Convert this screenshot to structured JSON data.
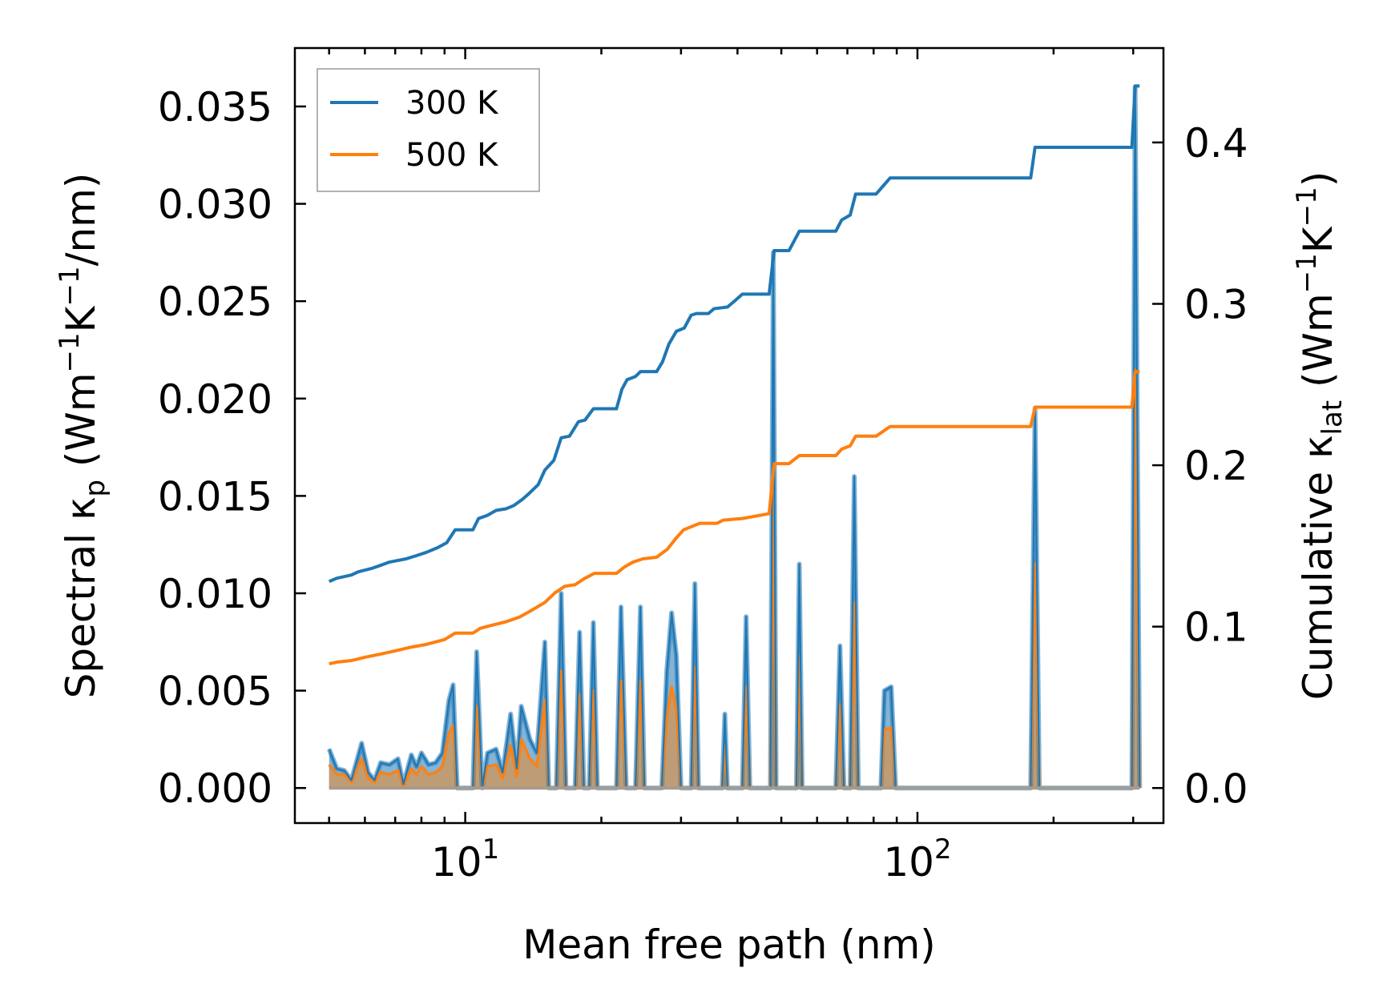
{
  "chart_data": {
    "type": "line",
    "title": "",
    "xlabel": "Mean free path (nm)",
    "x_scale": "log",
    "xlim": [
      4.2,
      350
    ],
    "x_ticks": [
      {
        "value": 10,
        "base": "10",
        "exp": "1"
      },
      {
        "value": 100,
        "base": "10",
        "exp": "2"
      }
    ],
    "ylabel_left": {
      "main": "Spectral κ",
      "sub": "p",
      "unit_open": " (Wm",
      "sup1": "−1",
      "mid": "K",
      "sup2": "−1",
      "unit_close": "/nm)"
    },
    "ylabel_right": {
      "main": "Cumulative κ",
      "sub": "lat",
      "unit_open": " (Wm",
      "sup1": "−1",
      "mid": "K",
      "sup2": "−1",
      "unit_close": ")"
    },
    "ylim_left": [
      -0.0018,
      0.038
    ],
    "ylim_right": [
      -0.0217,
      0.4585
    ],
    "yticks_left": [
      "0.000",
      "0.005",
      "0.010",
      "0.015",
      "0.020",
      "0.025",
      "0.030",
      "0.035"
    ],
    "yticks_right": [
      "0.0",
      "0.1",
      "0.2",
      "0.3",
      "0.4"
    ],
    "legend": {
      "position": "top-left",
      "entries": [
        "300 K",
        "500 K"
      ]
    },
    "colors": {
      "300 K": "#1f77b4",
      "500 K": "#ff7f0e",
      "fill_300": "#1f77b4",
      "fill_500": "#ff7f0e",
      "fill_overlap": "#c49a6c"
    },
    "spectral_series": [
      {
        "name": "300 K",
        "points": [
          [
            5.0,
            0.002
          ],
          [
            5.2,
            0.001
          ],
          [
            5.4,
            0.0009
          ],
          [
            5.6,
            0.0004
          ],
          [
            5.9,
            0.0023
          ],
          [
            6.1,
            0.0008
          ],
          [
            6.3,
            0.0004
          ],
          [
            6.5,
            0.0013
          ],
          [
            6.8,
            0.0012
          ],
          [
            7.1,
            0.0015
          ],
          [
            7.3,
            0.0002
          ],
          [
            7.6,
            0.0017
          ],
          [
            7.8,
            0.0011
          ],
          [
            8.0,
            0.0018
          ],
          [
            8.3,
            0.0012
          ],
          [
            8.6,
            0.0013
          ],
          [
            8.9,
            0.0018
          ],
          [
            9.2,
            0.0045
          ],
          [
            9.4,
            0.0053
          ],
          [
            9.6,
            0.0
          ],
          [
            10.4,
            0.0
          ],
          [
            10.6,
            0.007
          ],
          [
            10.9,
            0.0
          ],
          [
            11.2,
            0.0018
          ],
          [
            11.7,
            0.002
          ],
          [
            12.1,
            0.0008
          ],
          [
            12.6,
            0.0038
          ],
          [
            13.0,
            0.001
          ],
          [
            13.3,
            0.0042
          ],
          [
            13.9,
            0.0025
          ],
          [
            14.4,
            0.0018
          ],
          [
            15.0,
            0.0075
          ],
          [
            15.3,
            0.0
          ],
          [
            15.9,
            0.0
          ],
          [
            16.3,
            0.01
          ],
          [
            16.7,
            0.0
          ],
          [
            17.5,
            0.0
          ],
          [
            17.9,
            0.008
          ],
          [
            18.3,
            0.0
          ],
          [
            18.8,
            0.0
          ],
          [
            19.2,
            0.0085
          ],
          [
            19.6,
            0.0
          ],
          [
            21.6,
            0.0
          ],
          [
            22.1,
            0.0093
          ],
          [
            22.7,
            0.0
          ],
          [
            23.8,
            0.0
          ],
          [
            24.4,
            0.0093
          ],
          [
            24.9,
            0.0
          ],
          [
            27.2,
            0.0
          ],
          [
            27.9,
            0.006
          ],
          [
            28.6,
            0.009
          ],
          [
            29.3,
            0.0068
          ],
          [
            30.0,
            0.0
          ],
          [
            31.6,
            0.0
          ],
          [
            32.2,
            0.0105
          ],
          [
            32.8,
            0.0
          ],
          [
            37.0,
            0.0
          ],
          [
            37.5,
            0.0038
          ],
          [
            38.0,
            0.0
          ],
          [
            41.0,
            0.0
          ],
          [
            41.8,
            0.0088
          ],
          [
            42.6,
            0.0
          ],
          [
            47.3,
            0.0
          ],
          [
            48.0,
            0.0275
          ],
          [
            48.7,
            0.0
          ],
          [
            54.0,
            0.0
          ],
          [
            54.8,
            0.0115
          ],
          [
            55.6,
            0.0
          ],
          [
            66.0,
            0.0
          ],
          [
            67.4,
            0.0073
          ],
          [
            68.8,
            0.0
          ],
          [
            71.0,
            0.0
          ],
          [
            72.5,
            0.016
          ],
          [
            74.0,
            0.0
          ],
          [
            83.0,
            0.0
          ],
          [
            84.5,
            0.005
          ],
          [
            87.5,
            0.0052
          ],
          [
            89.5,
            0.0
          ],
          [
            178.0,
            0.0
          ],
          [
            182.0,
            0.0195
          ],
          [
            186.0,
            0.0
          ],
          [
            298.0,
            0.0
          ],
          [
            303.0,
            0.036
          ],
          [
            310.0,
            0.0
          ]
        ]
      },
      {
        "name": "500 K",
        "points": [
          [
            5.0,
            0.0012
          ],
          [
            5.2,
            0.0007
          ],
          [
            5.4,
            0.0007
          ],
          [
            5.6,
            0.0003
          ],
          [
            5.9,
            0.0015
          ],
          [
            6.1,
            0.0005
          ],
          [
            6.3,
            0.0003
          ],
          [
            6.5,
            0.0008
          ],
          [
            6.8,
            0.0007
          ],
          [
            7.1,
            0.0009
          ],
          [
            7.3,
            0.0001
          ],
          [
            7.6,
            0.001
          ],
          [
            7.8,
            0.0007
          ],
          [
            8.0,
            0.0011
          ],
          [
            8.3,
            0.0007
          ],
          [
            8.6,
            0.0008
          ],
          [
            8.9,
            0.0011
          ],
          [
            9.2,
            0.0028
          ],
          [
            9.4,
            0.0032
          ],
          [
            9.6,
            0.0
          ],
          [
            10.4,
            0.0
          ],
          [
            10.6,
            0.0042
          ],
          [
            10.9,
            0.0
          ],
          [
            11.2,
            0.0011
          ],
          [
            11.7,
            0.0012
          ],
          [
            12.1,
            0.0005
          ],
          [
            12.6,
            0.0022
          ],
          [
            13.0,
            0.0006
          ],
          [
            13.3,
            0.0025
          ],
          [
            13.9,
            0.0015
          ],
          [
            14.4,
            0.0011
          ],
          [
            15.0,
            0.0045
          ],
          [
            15.3,
            0.0
          ],
          [
            15.9,
            0.0
          ],
          [
            16.3,
            0.006
          ],
          [
            16.7,
            0.0
          ],
          [
            17.5,
            0.0
          ],
          [
            17.9,
            0.0048
          ],
          [
            18.3,
            0.0
          ],
          [
            18.8,
            0.0
          ],
          [
            19.2,
            0.005
          ],
          [
            19.6,
            0.0
          ],
          [
            21.6,
            0.0
          ],
          [
            22.1,
            0.0055
          ],
          [
            22.7,
            0.0
          ],
          [
            23.8,
            0.0
          ],
          [
            24.4,
            0.0055
          ],
          [
            24.9,
            0.0
          ],
          [
            27.2,
            0.0
          ],
          [
            27.9,
            0.0035
          ],
          [
            28.6,
            0.0052
          ],
          [
            29.3,
            0.004
          ],
          [
            30.0,
            0.0
          ],
          [
            31.6,
            0.0
          ],
          [
            32.2,
            0.0062
          ],
          [
            32.8,
            0.0
          ],
          [
            37.0,
            0.0
          ],
          [
            37.5,
            0.0022
          ],
          [
            38.0,
            0.0
          ],
          [
            41.0,
            0.0
          ],
          [
            41.8,
            0.0052
          ],
          [
            42.6,
            0.0
          ],
          [
            47.3,
            0.0
          ],
          [
            48.0,
            0.0163
          ],
          [
            48.7,
            0.0
          ],
          [
            54.0,
            0.0
          ],
          [
            54.8,
            0.0068
          ],
          [
            55.6,
            0.0
          ],
          [
            66.0,
            0.0
          ],
          [
            67.4,
            0.0043
          ],
          [
            68.8,
            0.0
          ],
          [
            71.0,
            0.0
          ],
          [
            72.5,
            0.0095
          ],
          [
            74.0,
            0.0
          ],
          [
            83.0,
            0.0
          ],
          [
            84.5,
            0.003
          ],
          [
            87.5,
            0.0031
          ],
          [
            89.5,
            0.0
          ],
          [
            178.0,
            0.0
          ],
          [
            182.0,
            0.0115
          ],
          [
            186.0,
            0.0
          ],
          [
            298.0,
            0.0
          ],
          [
            303.0,
            0.0215
          ],
          [
            310.0,
            0.0
          ]
        ]
      }
    ],
    "cumulative_series": [
      {
        "name": "300 K",
        "points": [
          [
            5.0,
            0.128
          ],
          [
            5.2,
            0.13
          ],
          [
            5.4,
            0.131
          ],
          [
            5.6,
            0.132
          ],
          [
            5.8,
            0.134
          ],
          [
            6.2,
            0.136
          ],
          [
            6.5,
            0.138
          ],
          [
            6.8,
            0.14
          ],
          [
            7.4,
            0.142
          ],
          [
            7.8,
            0.144
          ],
          [
            8.2,
            0.146
          ],
          [
            8.7,
            0.149
          ],
          [
            9.1,
            0.152
          ],
          [
            9.5,
            0.16
          ],
          [
            10.4,
            0.16
          ],
          [
            10.7,
            0.167
          ],
          [
            11.2,
            0.169
          ],
          [
            11.7,
            0.172
          ],
          [
            12.3,
            0.173
          ],
          [
            12.8,
            0.175
          ],
          [
            13.4,
            0.179
          ],
          [
            13.9,
            0.183
          ],
          [
            14.5,
            0.188
          ],
          [
            15.0,
            0.197
          ],
          [
            15.7,
            0.203
          ],
          [
            16.3,
            0.217
          ],
          [
            17.0,
            0.218
          ],
          [
            17.8,
            0.227
          ],
          [
            18.4,
            0.228
          ],
          [
            19.2,
            0.235
          ],
          [
            21.6,
            0.235
          ],
          [
            22.2,
            0.247
          ],
          [
            22.8,
            0.253
          ],
          [
            23.8,
            0.255
          ],
          [
            24.4,
            0.258
          ],
          [
            26.5,
            0.258
          ],
          [
            27.3,
            0.264
          ],
          [
            28.2,
            0.275
          ],
          [
            29.3,
            0.283
          ],
          [
            30.5,
            0.285
          ],
          [
            31.6,
            0.293
          ],
          [
            32.5,
            0.294
          ],
          [
            34.5,
            0.294
          ],
          [
            35.5,
            0.297
          ],
          [
            38.0,
            0.298
          ],
          [
            39.5,
            0.302
          ],
          [
            41.0,
            0.306
          ],
          [
            47.0,
            0.306
          ],
          [
            48.2,
            0.333
          ],
          [
            52.0,
            0.333
          ],
          [
            54.8,
            0.345
          ],
          [
            66.0,
            0.345
          ],
          [
            68.0,
            0.352
          ],
          [
            71.0,
            0.355
          ],
          [
            73.0,
            0.368
          ],
          [
            81.0,
            0.368
          ],
          [
            87.0,
            0.378
          ],
          [
            178.0,
            0.378
          ],
          [
            182.0,
            0.397
          ],
          [
            298.0,
            0.397
          ],
          [
            303.0,
            0.435
          ],
          [
            310.0,
            0.435
          ]
        ]
      },
      {
        "name": "500 K",
        "points": [
          [
            5.0,
            0.077
          ],
          [
            5.2,
            0.078
          ],
          [
            5.6,
            0.079
          ],
          [
            6.0,
            0.081
          ],
          [
            6.5,
            0.083
          ],
          [
            7.0,
            0.085
          ],
          [
            7.5,
            0.087
          ],
          [
            8.2,
            0.089
          ],
          [
            9.0,
            0.092
          ],
          [
            9.5,
            0.096
          ],
          [
            10.4,
            0.096
          ],
          [
            10.8,
            0.099
          ],
          [
            11.5,
            0.101
          ],
          [
            12.3,
            0.103
          ],
          [
            13.2,
            0.106
          ],
          [
            14.0,
            0.11
          ],
          [
            15.0,
            0.115
          ],
          [
            15.8,
            0.121
          ],
          [
            16.6,
            0.125
          ],
          [
            17.5,
            0.126
          ],
          [
            18.4,
            0.13
          ],
          [
            19.3,
            0.133
          ],
          [
            21.6,
            0.133
          ],
          [
            22.5,
            0.137
          ],
          [
            23.5,
            0.14
          ],
          [
            24.7,
            0.142
          ],
          [
            26.5,
            0.143
          ],
          [
            28.0,
            0.148
          ],
          [
            29.3,
            0.155
          ],
          [
            30.4,
            0.16
          ],
          [
            33.0,
            0.164
          ],
          [
            36.0,
            0.164
          ],
          [
            37.2,
            0.166
          ],
          [
            41.0,
            0.167
          ],
          [
            47.0,
            0.17
          ],
          [
            48.2,
            0.201
          ],
          [
            52.0,
            0.201
          ],
          [
            54.8,
            0.206
          ],
          [
            66.0,
            0.206
          ],
          [
            68.0,
            0.21
          ],
          [
            71.0,
            0.212
          ],
          [
            73.0,
            0.218
          ],
          [
            81.0,
            0.218
          ],
          [
            87.0,
            0.224
          ],
          [
            178.0,
            0.224
          ],
          [
            182.0,
            0.236
          ],
          [
            298.0,
            0.236
          ],
          [
            303.0,
            0.258
          ],
          [
            310.0,
            0.258
          ]
        ]
      }
    ]
  }
}
